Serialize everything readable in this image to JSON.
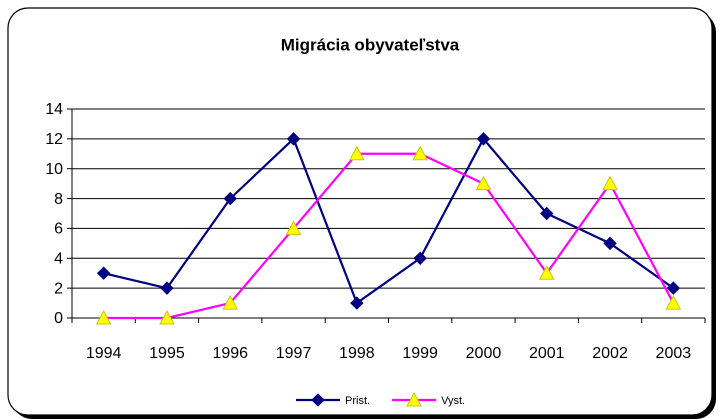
{
  "chart_data": {
    "type": "line",
    "title": "Migrácia obyvateľstva",
    "categories": [
      "1994",
      "1995",
      "1996",
      "1997",
      "1998",
      "1999",
      "2000",
      "2001",
      "2002",
      "2003"
    ],
    "series": [
      {
        "name": "Prist.",
        "color": "#000080",
        "marker": "diamond",
        "marker_color": "#000080",
        "values": [
          3,
          2,
          8,
          12,
          1,
          4,
          12,
          7,
          5,
          2
        ]
      },
      {
        "name": "Vyst.",
        "color": "#ff00ff",
        "marker": "triangle",
        "marker_color": "#ffff00",
        "values": [
          0,
          0,
          1,
          6,
          11,
          11,
          9,
          3,
          9,
          1
        ]
      }
    ],
    "ylim": [
      0,
      14
    ],
    "yticks": [
      0,
      2,
      4,
      6,
      8,
      10,
      12,
      14
    ],
    "grid": true,
    "legend": "bottom"
  }
}
